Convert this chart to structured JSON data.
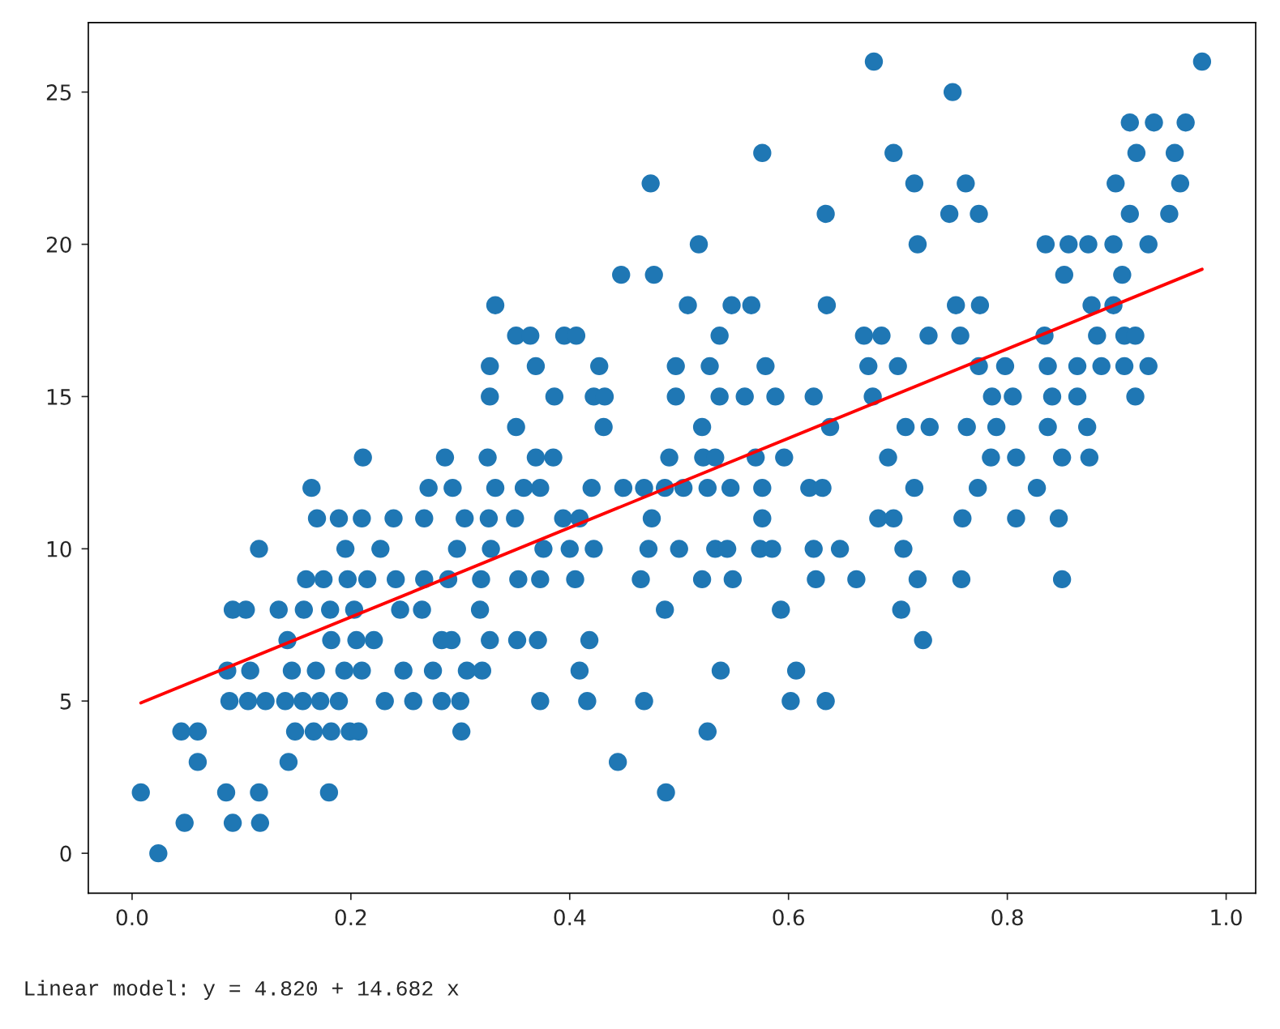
{
  "chart_data": {
    "type": "scatter",
    "xlim": [
      -0.04,
      1.027
    ],
    "ylim": [
      -1.31,
      27.28
    ],
    "xticks": [
      {
        "value": 0,
        "label": "0.0"
      },
      {
        "value": 0.2,
        "label": "0.2"
      },
      {
        "value": 0.4,
        "label": "0.4"
      },
      {
        "value": 0.6,
        "label": "0.6"
      },
      {
        "value": 0.8,
        "label": "0.8"
      },
      {
        "value": 1,
        "label": "1.0"
      }
    ],
    "yticks": [
      0,
      5,
      10,
      15,
      20,
      25
    ],
    "grid": false,
    "legend": false,
    "annotations": [
      "Linear model: y = 4.820 + 14.682 x"
    ],
    "series": [
      {
        "marker": "circle",
        "color": "#1f77b4",
        "x": [
          0.024,
          0.048,
          0.092,
          0.117,
          0.008,
          0.086,
          0.116,
          0.18,
          0.488,
          0.06,
          0.143,
          0.444,
          0.045,
          0.06,
          0.149,
          0.166,
          0.182,
          0.199,
          0.207,
          0.301,
          0.526,
          0.089,
          0.106,
          0.122,
          0.14,
          0.156,
          0.172,
          0.189,
          0.231,
          0.257,
          0.283,
          0.3,
          0.373,
          0.416,
          0.468,
          0.602,
          0.634,
          0.087,
          0.108,
          0.146,
          0.168,
          0.194,
          0.21,
          0.248,
          0.275,
          0.306,
          0.32,
          0.409,
          0.538,
          0.607,
          0.142,
          0.182,
          0.205,
          0.221,
          0.283,
          0.292,
          0.327,
          0.352,
          0.371,
          0.418,
          0.723,
          0.092,
          0.104,
          0.134,
          0.157,
          0.181,
          0.203,
          0.245,
          0.265,
          0.318,
          0.487,
          0.593,
          0.703,
          0.159,
          0.175,
          0.197,
          0.215,
          0.241,
          0.267,
          0.289,
          0.319,
          0.353,
          0.373,
          0.405,
          0.465,
          0.521,
          0.549,
          0.625,
          0.662,
          0.718,
          0.758,
          0.85,
          0.116,
          0.195,
          0.227,
          0.297,
          0.328,
          0.376,
          0.4,
          0.422,
          0.472,
          0.5,
          0.533,
          0.544,
          0.574,
          0.585,
          0.623,
          0.647,
          0.705,
          0.169,
          0.189,
          0.21,
          0.239,
          0.267,
          0.304,
          0.326,
          0.35,
          0.394,
          0.409,
          0.475,
          0.576,
          0.682,
          0.696,
          0.759,
          0.808,
          0.847,
          0.164,
          0.271,
          0.293,
          0.332,
          0.358,
          0.373,
          0.42,
          0.449,
          0.468,
          0.487,
          0.504,
          0.526,
          0.547,
          0.576,
          0.619,
          0.631,
          0.715,
          0.773,
          0.827,
          0.211,
          0.286,
          0.325,
          0.369,
          0.385,
          0.491,
          0.522,
          0.533,
          0.57,
          0.596,
          0.691,
          0.785,
          0.808,
          0.85,
          0.875,
          0.351,
          0.431,
          0.521,
          0.638,
          0.707,
          0.729,
          0.763,
          0.79,
          0.837,
          0.873,
          0.327,
          0.386,
          0.422,
          0.432,
          0.497,
          0.537,
          0.56,
          0.588,
          0.623,
          0.677,
          0.786,
          0.805,
          0.841,
          0.864,
          0.917,
          0.327,
          0.369,
          0.427,
          0.497,
          0.528,
          0.579,
          0.673,
          0.7,
          0.774,
          0.798,
          0.837,
          0.864,
          0.886,
          0.907,
          0.929,
          0.351,
          0.364,
          0.395,
          0.406,
          0.537,
          0.669,
          0.685,
          0.728,
          0.757,
          0.834,
          0.882,
          0.907,
          0.917,
          0.332,
          0.508,
          0.548,
          0.566,
          0.635,
          0.753,
          0.775,
          0.877,
          0.897,
          0.447,
          0.477,
          0.852,
          0.905,
          0.518,
          0.718,
          0.835,
          0.856,
          0.874,
          0.897,
          0.929,
          0.634,
          0.747,
          0.774,
          0.912,
          0.948,
          0.474,
          0.715,
          0.762,
          0.899,
          0.958,
          0.576,
          0.696,
          0.918,
          0.953,
          0.912,
          0.934,
          0.963,
          0.75,
          0.678,
          0.978
        ],
        "values": [
          0,
          1,
          1,
          1,
          2,
          2,
          2,
          2,
          2,
          3,
          3,
          3,
          4,
          4,
          4,
          4,
          4,
          4,
          4,
          4,
          4,
          5,
          5,
          5,
          5,
          5,
          5,
          5,
          5,
          5,
          5,
          5,
          5,
          5,
          5,
          5,
          5,
          6,
          6,
          6,
          6,
          6,
          6,
          6,
          6,
          6,
          6,
          6,
          6,
          6,
          7,
          7,
          7,
          7,
          7,
          7,
          7,
          7,
          7,
          7,
          7,
          8,
          8,
          8,
          8,
          8,
          8,
          8,
          8,
          8,
          8,
          8,
          8,
          9,
          9,
          9,
          9,
          9,
          9,
          9,
          9,
          9,
          9,
          9,
          9,
          9,
          9,
          9,
          9,
          9,
          9,
          9,
          10,
          10,
          10,
          10,
          10,
          10,
          10,
          10,
          10,
          10,
          10,
          10,
          10,
          10,
          10,
          10,
          10,
          11,
          11,
          11,
          11,
          11,
          11,
          11,
          11,
          11,
          11,
          11,
          11,
          11,
          11,
          11,
          11,
          11,
          12,
          12,
          12,
          12,
          12,
          12,
          12,
          12,
          12,
          12,
          12,
          12,
          12,
          12,
          12,
          12,
          12,
          12,
          12,
          13,
          13,
          13,
          13,
          13,
          13,
          13,
          13,
          13,
          13,
          13,
          13,
          13,
          13,
          13,
          14,
          14,
          14,
          14,
          14,
          14,
          14,
          14,
          14,
          14,
          15,
          15,
          15,
          15,
          15,
          15,
          15,
          15,
          15,
          15,
          15,
          15,
          15,
          15,
          15,
          16,
          16,
          16,
          16,
          16,
          16,
          16,
          16,
          16,
          16,
          16,
          16,
          16,
          16,
          16,
          17,
          17,
          17,
          17,
          17,
          17,
          17,
          17,
          17,
          17,
          17,
          17,
          17,
          18,
          18,
          18,
          18,
          18,
          18,
          18,
          18,
          18,
          19,
          19,
          19,
          19,
          20,
          20,
          20,
          20,
          20,
          20,
          20,
          21,
          21,
          21,
          21,
          21,
          22,
          22,
          22,
          22,
          22,
          23,
          23,
          23,
          23,
          24,
          24,
          24,
          25,
          26,
          26
        ]
      },
      {
        "type": "line",
        "color": "#ff0000",
        "x": [
          0.008,
          0.978
        ],
        "values": [
          4.94,
          19.18
        ]
      }
    ]
  }
}
